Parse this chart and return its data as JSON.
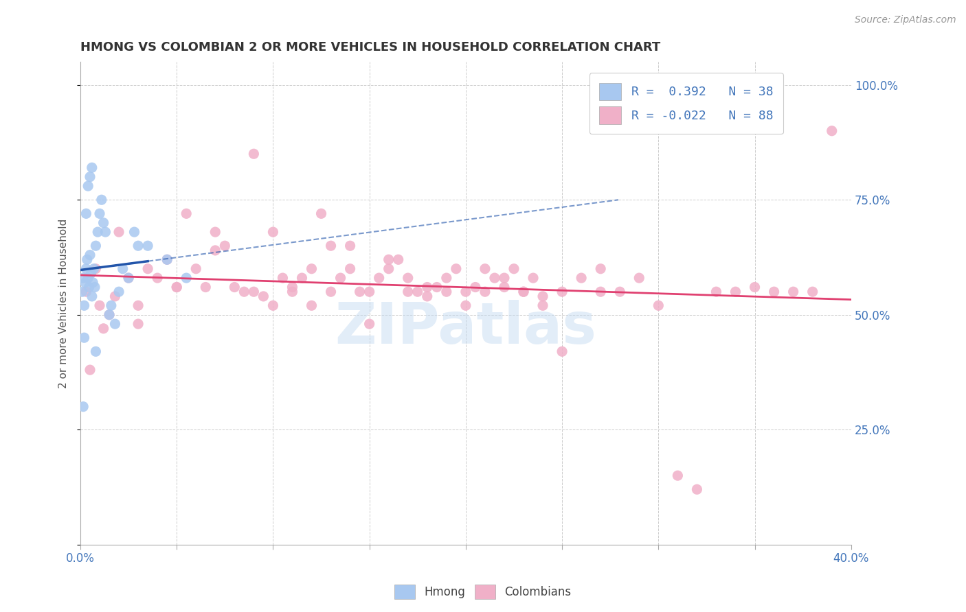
{
  "title": "HMONG VS COLOMBIAN 2 OR MORE VEHICLES IN HOUSEHOLD CORRELATION CHART",
  "source": "Source: ZipAtlas.com",
  "ylabel": "2 or more Vehicles in Household",
  "hmong_r": " 0.392",
  "hmong_n": "38",
  "colombian_r": "-0.022",
  "colombian_n": "88",
  "hmong_color": "#a8c8f0",
  "colombian_color": "#f0b0c8",
  "hmong_line_color": "#2255aa",
  "colombian_line_color": "#e04070",
  "watermark": "ZIPatlas",
  "xmin": 0.0,
  "xmax": 40.0,
  "ymin": 0.0,
  "ymax": 1.05,
  "right_ytick_vals": [
    0.25,
    0.5,
    0.75,
    1.0
  ],
  "right_ytick_labels": [
    "25.0%",
    "50.0%",
    "75.0%",
    "100.0%"
  ],
  "hmong_x": [
    0.1,
    0.15,
    0.2,
    0.25,
    0.3,
    0.35,
    0.4,
    0.45,
    0.5,
    0.55,
    0.6,
    0.65,
    0.7,
    0.75,
    0.8,
    0.9,
    1.0,
    1.1,
    1.2,
    1.3,
    1.5,
    1.6,
    1.8,
    2.0,
    2.2,
    2.5,
    3.0,
    0.5,
    0.6,
    0.3,
    0.4,
    0.8,
    0.2,
    0.15,
    2.8,
    3.5,
    4.5,
    5.5
  ],
  "hmong_y": [
    0.55,
    0.58,
    0.52,
    0.57,
    0.6,
    0.62,
    0.58,
    0.56,
    0.63,
    0.59,
    0.54,
    0.57,
    0.6,
    0.56,
    0.65,
    0.68,
    0.72,
    0.75,
    0.7,
    0.68,
    0.5,
    0.52,
    0.48,
    0.55,
    0.6,
    0.58,
    0.65,
    0.8,
    0.82,
    0.72,
    0.78,
    0.42,
    0.45,
    0.3,
    0.68,
    0.65,
    0.62,
    0.58
  ],
  "colombian_x": [
    0.3,
    0.5,
    0.8,
    1.0,
    1.2,
    1.5,
    1.8,
    2.0,
    2.5,
    3.0,
    3.5,
    4.0,
    4.5,
    5.0,
    5.5,
    6.0,
    6.5,
    7.0,
    7.5,
    8.0,
    8.5,
    9.0,
    9.5,
    10.0,
    10.5,
    11.0,
    11.5,
    12.0,
    12.5,
    13.0,
    13.5,
    14.0,
    14.5,
    15.0,
    15.5,
    16.0,
    16.5,
    17.0,
    17.5,
    18.0,
    18.5,
    19.0,
    19.5,
    20.0,
    20.5,
    21.0,
    21.5,
    22.0,
    22.5,
    23.0,
    23.5,
    24.0,
    25.0,
    26.0,
    27.0,
    28.0,
    29.0,
    30.0,
    31.0,
    32.0,
    33.0,
    34.0,
    35.0,
    36.0,
    37.0,
    38.0,
    39.0,
    3.0,
    5.0,
    7.0,
    9.0,
    11.0,
    13.0,
    15.0,
    17.0,
    19.0,
    21.0,
    23.0,
    25.0,
    27.0,
    10.0,
    12.0,
    14.0,
    16.0,
    18.0,
    20.0,
    22.0,
    24.0
  ],
  "colombian_y": [
    0.55,
    0.38,
    0.6,
    0.52,
    0.47,
    0.5,
    0.54,
    0.68,
    0.58,
    0.52,
    0.6,
    0.58,
    0.62,
    0.56,
    0.72,
    0.6,
    0.56,
    0.68,
    0.65,
    0.56,
    0.55,
    0.85,
    0.54,
    0.52,
    0.58,
    0.56,
    0.58,
    0.52,
    0.72,
    0.65,
    0.58,
    0.6,
    0.55,
    0.48,
    0.58,
    0.6,
    0.62,
    0.58,
    0.55,
    0.54,
    0.56,
    0.58,
    0.6,
    0.52,
    0.56,
    0.6,
    0.58,
    0.56,
    0.6,
    0.55,
    0.58,
    0.54,
    0.42,
    0.58,
    0.6,
    0.55,
    0.58,
    0.52,
    0.15,
    0.12,
    0.55,
    0.55,
    0.56,
    0.55,
    0.55,
    0.55,
    0.9,
    0.48,
    0.56,
    0.64,
    0.55,
    0.55,
    0.55,
    0.55,
    0.55,
    0.55,
    0.55,
    0.55,
    0.55,
    0.55,
    0.68,
    0.6,
    0.65,
    0.62,
    0.56,
    0.55,
    0.58,
    0.52
  ]
}
